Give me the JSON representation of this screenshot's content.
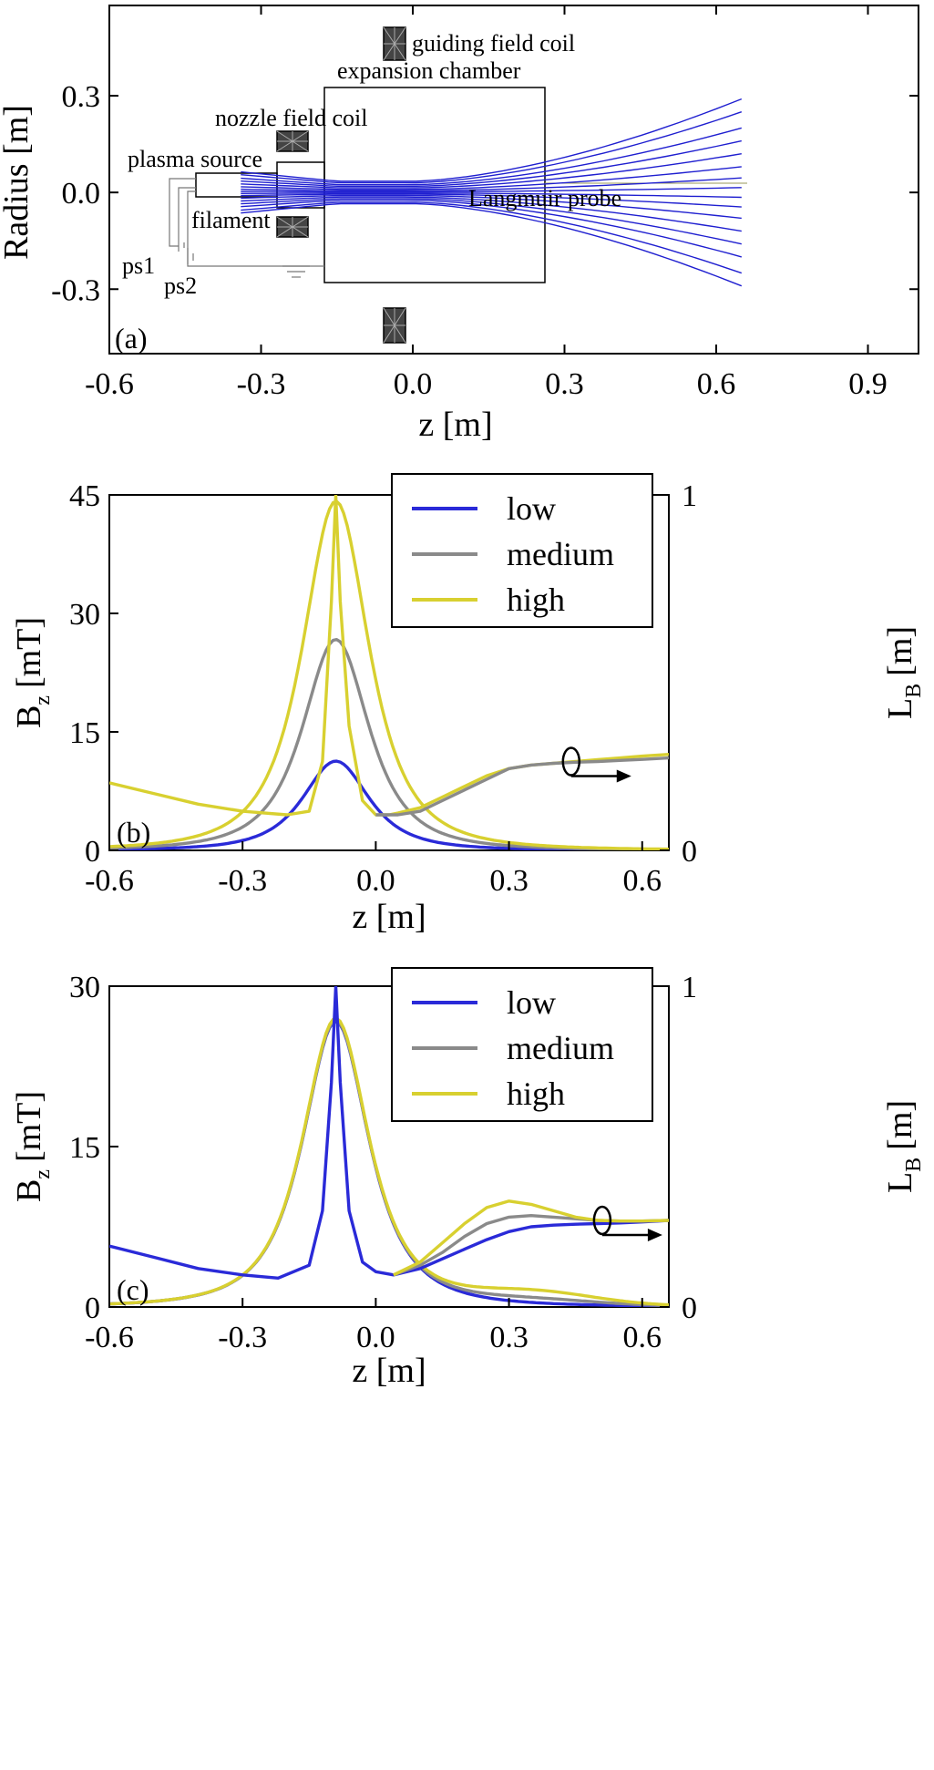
{
  "chart_data": [
    {
      "panel": "(a)",
      "type": "diagram",
      "xlabel": "z [m]",
      "ylabel": "Radius [m]",
      "xlim": [
        -0.6,
        1.0
      ],
      "ylim": [
        -0.5,
        0.58
      ],
      "xticks": [
        "-0.6",
        "-0.3",
        "0.0",
        "0.3",
        "0.6",
        "0.9"
      ],
      "yticks": [
        "-0.3",
        "0.0",
        "0.3"
      ],
      "annotations": {
        "guiding": "guiding field coil",
        "chamber": "expansion chamber",
        "nozzle": "nozzle field coil",
        "source": "plasma source",
        "filament": "filament",
        "probe": "Langmuir probe",
        "ps1": "ps1",
        "ps2": "ps2"
      },
      "field_line_color": "#1f1fd0",
      "field_line_end_radii": [
        -0.29,
        -0.25,
        -0.2,
        -0.16,
        -0.12,
        -0.08,
        -0.045,
        -0.015,
        0.015,
        0.045,
        0.08,
        0.12,
        0.16,
        0.2,
        0.25,
        0.29
      ]
    },
    {
      "panel": "(b)",
      "type": "line",
      "xlabel": "z [m]",
      "ylabel": "B",
      "ylabel_sub": "z",
      "ylabel_unit": "[mT]",
      "y2label": "L",
      "y2label_sub": "B",
      "y2label_unit": "[m]",
      "xlim": [
        -0.6,
        0.66
      ],
      "ylim": [
        0,
        45
      ],
      "y2lim": [
        0,
        1
      ],
      "xticks": [
        "-0.6",
        "-0.3",
        "0.0",
        "0.3",
        "0.6"
      ],
      "yticks": [
        "0",
        "15",
        "30",
        "45"
      ],
      "y2ticks": [
        "0",
        "1"
      ],
      "legend": {
        "position": "top-right",
        "entries": [
          "low",
          "medium",
          "high"
        ]
      },
      "series": [
        {
          "name": "low",
          "color": "#2a2ad8",
          "kind": "Bz",
          "peak": 11.3,
          "center": -0.09,
          "width": 0.115
        },
        {
          "name": "medium",
          "color": "#8a8a8a",
          "kind": "Bz",
          "peak": 26.7,
          "center": -0.09,
          "width": 0.115
        },
        {
          "name": "high",
          "color": "#d8d030",
          "kind": "Bz",
          "peak": 44.2,
          "center": -0.09,
          "width": 0.115
        },
        {
          "name": "high",
          "color": "#d8d030",
          "kind": "LB",
          "x": [
            -0.6,
            -0.5,
            -0.4,
            -0.3,
            -0.2,
            -0.15,
            -0.12,
            -0.1,
            -0.09,
            -0.08,
            -0.06,
            -0.03,
            0.0,
            0.03,
            0.05,
            0.1,
            0.15,
            0.2,
            0.25,
            0.3,
            0.35,
            0.4,
            0.45,
            0.5,
            0.55,
            0.6,
            0.66
          ],
          "y": [
            0.19,
            0.16,
            0.13,
            0.11,
            0.1,
            0.11,
            0.25,
            0.7,
            1.0,
            0.7,
            0.35,
            0.14,
            0.1,
            0.1,
            0.105,
            0.12,
            0.15,
            0.18,
            0.21,
            0.23,
            0.24,
            0.245,
            0.25,
            0.255,
            0.26,
            0.265,
            0.27
          ]
        },
        {
          "name": "medium",
          "color": "#8a8a8a",
          "kind": "LB",
          "x": [
            0.0,
            0.05,
            0.1,
            0.15,
            0.2,
            0.25,
            0.3,
            0.35,
            0.4,
            0.45,
            0.5,
            0.55,
            0.6,
            0.66
          ],
          "y": [
            0.1,
            0.1,
            0.11,
            0.14,
            0.17,
            0.2,
            0.23,
            0.24,
            0.245,
            0.248,
            0.25,
            0.253,
            0.256,
            0.26
          ]
        }
      ],
      "arrow_marker": {
        "x": 0.44,
        "y": 0.25
      }
    },
    {
      "panel": "(c)",
      "type": "line",
      "xlabel": "z [m]",
      "ylabel": "B",
      "ylabel_sub": "z",
      "ylabel_unit": "[mT]",
      "y2label": "L",
      "y2label_sub": "B",
      "y2label_unit": "[m]",
      "xlim": [
        -0.6,
        0.66
      ],
      "ylim": [
        0,
        30
      ],
      "y2lim": [
        0,
        1
      ],
      "xticks": [
        "-0.6",
        "-0.3",
        "0.0",
        "0.3",
        "0.6"
      ],
      "yticks": [
        "0",
        "15",
        "30"
      ],
      "y2ticks": [
        "0",
        "1"
      ],
      "legend": {
        "position": "top-right",
        "entries": [
          "low",
          "medium",
          "high"
        ]
      },
      "series": [
        {
          "name": "low",
          "color": "#2a2ad8",
          "kind": "Bz",
          "peak": 26.7,
          "center": -0.09,
          "width": 0.115,
          "tail": 0.0
        },
        {
          "name": "medium",
          "color": "#8a8a8a",
          "kind": "Bz",
          "peak": 26.8,
          "center": -0.09,
          "width": 0.115,
          "tail": 0.4
        },
        {
          "name": "high",
          "color": "#d8d030",
          "kind": "Bz",
          "peak": 27.0,
          "center": -0.09,
          "width": 0.115,
          "tail": 1.0
        },
        {
          "name": "low",
          "color": "#2a2ad8",
          "kind": "LB",
          "x": [
            -0.6,
            -0.5,
            -0.4,
            -0.3,
            -0.22,
            -0.15,
            -0.12,
            -0.1,
            -0.09,
            -0.08,
            -0.06,
            -0.03,
            0.0,
            0.04,
            0.1,
            0.15,
            0.2,
            0.25,
            0.3,
            0.35,
            0.4,
            0.45,
            0.5,
            0.55,
            0.6,
            0.66
          ],
          "y": [
            0.19,
            0.155,
            0.12,
            0.1,
            0.09,
            0.13,
            0.3,
            0.7,
            1.0,
            0.7,
            0.3,
            0.14,
            0.11,
            0.1,
            0.12,
            0.15,
            0.18,
            0.21,
            0.235,
            0.25,
            0.255,
            0.258,
            0.26,
            0.262,
            0.265,
            0.27
          ]
        },
        {
          "name": "medium",
          "color": "#8a8a8a",
          "kind": "LB",
          "x": [
            0.04,
            0.1,
            0.15,
            0.2,
            0.25,
            0.3,
            0.35,
            0.4,
            0.45,
            0.5,
            0.55,
            0.6,
            0.66
          ],
          "y": [
            0.1,
            0.13,
            0.17,
            0.22,
            0.26,
            0.28,
            0.285,
            0.28,
            0.275,
            0.27,
            0.268,
            0.268,
            0.27
          ]
        },
        {
          "name": "high",
          "color": "#d8d030",
          "kind": "LB",
          "x": [
            0.04,
            0.1,
            0.15,
            0.2,
            0.25,
            0.3,
            0.35,
            0.4,
            0.45,
            0.5,
            0.55,
            0.6,
            0.66
          ],
          "y": [
            0.1,
            0.14,
            0.2,
            0.26,
            0.31,
            0.33,
            0.32,
            0.3,
            0.28,
            0.27,
            0.268,
            0.268,
            0.27
          ]
        }
      ],
      "arrow_marker": {
        "x": 0.51,
        "y": 0.27
      }
    }
  ]
}
